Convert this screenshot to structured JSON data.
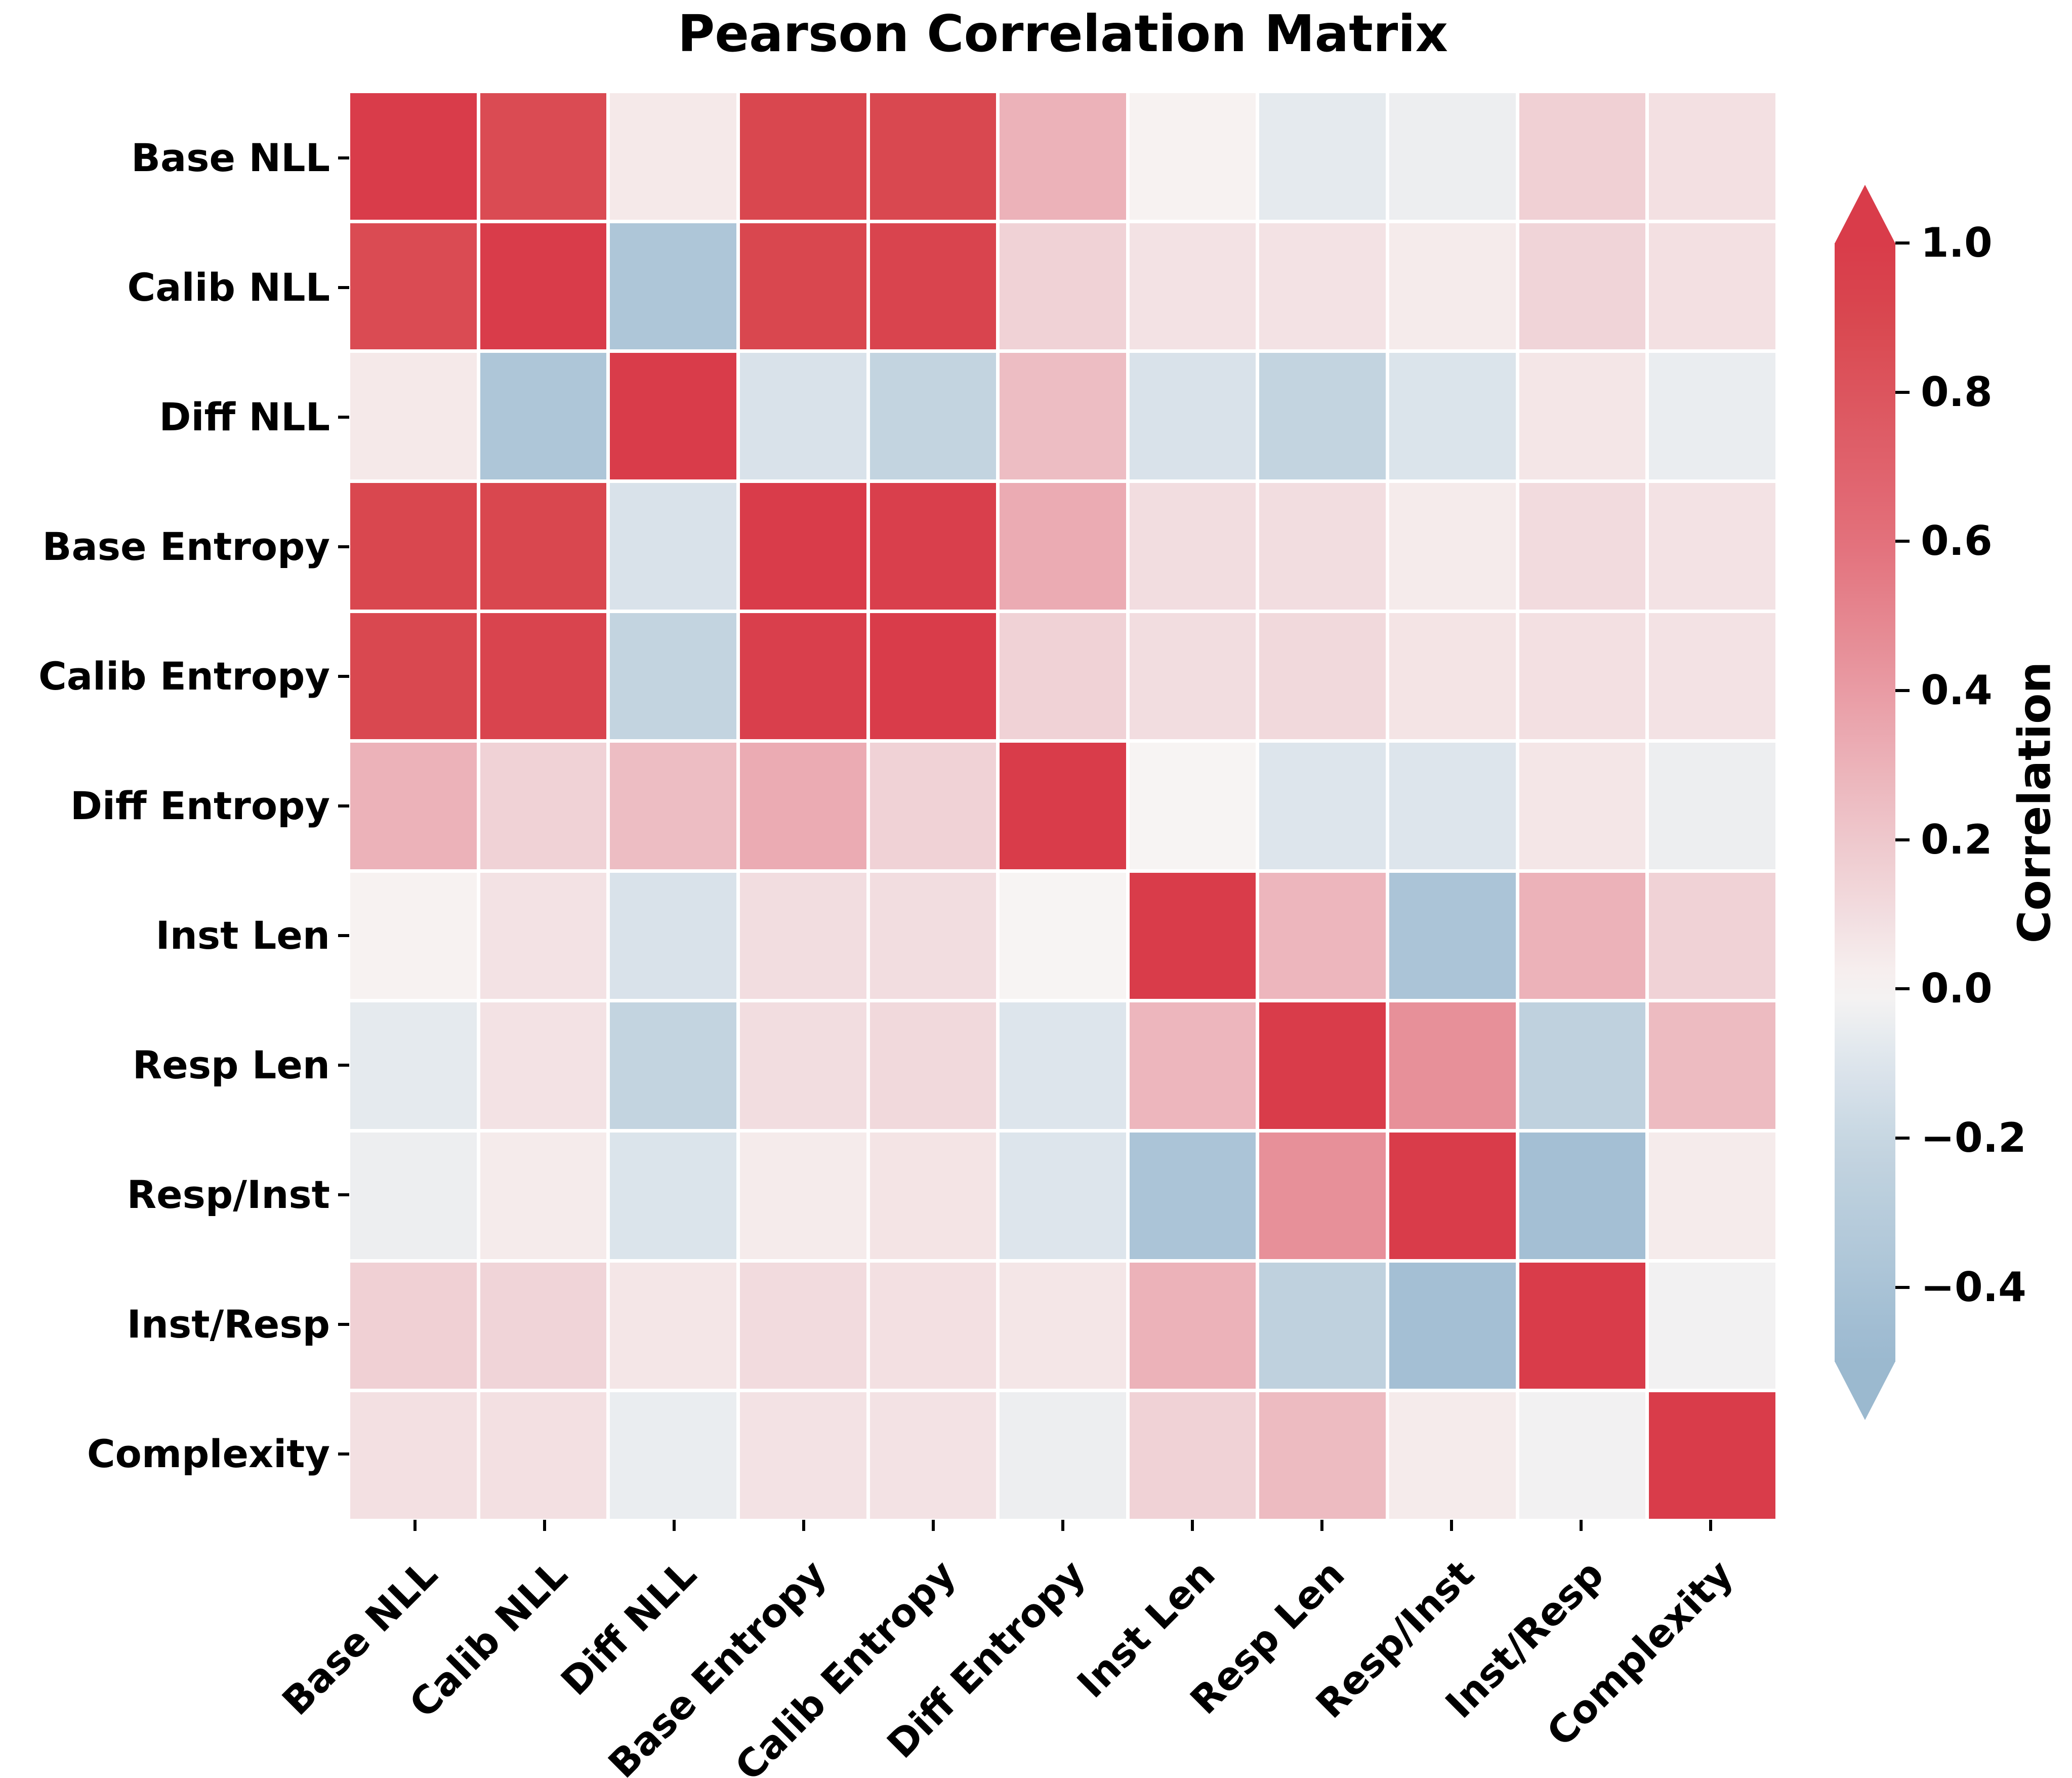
{
  "title": "Pearson Correlation Matrix",
  "colorbar": {
    "label": "Correlation",
    "tick_labels": [
      "1.0",
      "0.8",
      "0.6",
      "0.4",
      "0.2",
      "0.0",
      "−0.2",
      "−0.4"
    ],
    "tick_values": [
      1.0,
      0.8,
      0.6,
      0.4,
      0.2,
      0.0,
      -0.2,
      -0.4
    ],
    "vmin": -0.5,
    "vmax": 1.0,
    "color_positive_end": "#d93c4a",
    "color_center": "#f7f4f3",
    "color_negative_end": "#9bb9cf"
  },
  "chart_data": {
    "type": "heatmap",
    "title": "Pearson Correlation Matrix",
    "colorbar_label": "Correlation",
    "colorbar_ticks": [
      1.0,
      0.8,
      0.6,
      0.4,
      0.2,
      0.0,
      -0.2,
      -0.4
    ],
    "vmin": -0.5,
    "vmax": 1.0,
    "legend_position": "right",
    "categories": [
      "Base NLL",
      "Calib NLL",
      "Diff NLL",
      "Base Entropy",
      "Calib Entropy",
      "Diff Entropy",
      "Inst Len",
      "Resp Len",
      "Resp/Inst",
      "Inst/Resp",
      "Complexity"
    ],
    "matrix": [
      [
        1.0,
        0.87,
        0.05,
        0.9,
        0.89,
        0.3,
        0.01,
        -0.07,
        -0.04,
        0.16,
        0.09
      ],
      [
        0.87,
        1.0,
        -0.37,
        0.9,
        0.93,
        0.15,
        0.08,
        0.08,
        0.04,
        0.14,
        0.09
      ],
      [
        0.05,
        -0.37,
        1.0,
        -0.12,
        -0.22,
        0.25,
        -0.12,
        -0.22,
        -0.11,
        0.06,
        -0.05
      ],
      [
        0.9,
        0.9,
        -0.12,
        1.0,
        0.97,
        0.33,
        0.1,
        0.1,
        0.04,
        0.11,
        0.08
      ],
      [
        0.89,
        0.93,
        -0.22,
        0.97,
        1.0,
        0.15,
        0.1,
        0.12,
        0.07,
        0.09,
        0.08
      ],
      [
        0.3,
        0.15,
        0.25,
        0.33,
        0.15,
        1.0,
        0.0,
        -0.1,
        -0.1,
        0.06,
        -0.04
      ],
      [
        0.01,
        0.08,
        -0.12,
        0.1,
        0.1,
        0.0,
        1.0,
        0.28,
        -0.39,
        0.3,
        0.15
      ],
      [
        -0.07,
        0.08,
        -0.22,
        0.1,
        0.12,
        -0.1,
        0.28,
        1.0,
        0.45,
        -0.25,
        0.26
      ],
      [
        -0.04,
        0.04,
        -0.11,
        0.04,
        0.07,
        -0.1,
        -0.39,
        0.45,
        1.0,
        -0.43,
        0.04
      ],
      [
        0.16,
        0.14,
        0.06,
        0.11,
        0.09,
        0.06,
        0.3,
        -0.25,
        -0.43,
        1.0,
        -0.02
      ],
      [
        0.09,
        0.09,
        -0.05,
        0.08,
        0.08,
        -0.04,
        0.15,
        0.26,
        0.04,
        -0.02,
        1.0
      ]
    ],
    "colormap_stops": [
      [
        -0.5,
        [
          155,
          185,
          207
        ]
      ],
      [
        -0.43,
        [
          164,
          191,
          212
        ]
      ],
      [
        -0.37,
        [
          174,
          198,
          216
        ]
      ],
      [
        -0.22,
        [
          195,
          212,
          224
        ]
      ],
      [
        -0.1,
        [
          221,
          229,
          236
        ]
      ],
      [
        0.0,
        [
          247,
          244,
          243
        ]
      ],
      [
        0.15,
        [
          240,
          210,
          214
        ]
      ],
      [
        0.3,
        [
          236,
          178,
          185
        ]
      ],
      [
        0.45,
        [
          231,
          144,
          153
        ]
      ],
      [
        0.6,
        [
          227,
          112,
          123
        ]
      ],
      [
        0.9,
        [
          217,
          71,
          79
        ]
      ],
      [
        1.0,
        [
          217,
          60,
          74
        ]
      ]
    ]
  }
}
